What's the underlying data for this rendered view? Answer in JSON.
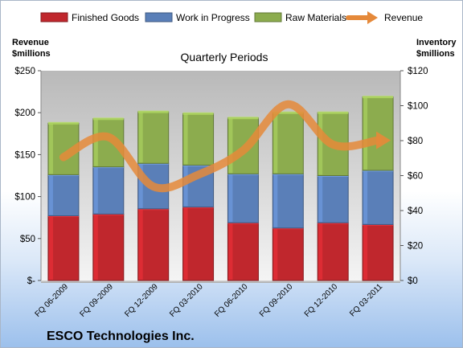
{
  "chart_data": {
    "type": "bar",
    "subtitle": "Quarterly Periods",
    "company": "ESCO Technologies Inc.",
    "categories": [
      "FQ 06-2009",
      "FQ 09-2009",
      "FQ 12-2009",
      "FQ 03-2010",
      "FQ 06-2010",
      "FQ 09-2010",
      "FQ 12-2010",
      "FQ 03-2011"
    ],
    "left_axis": {
      "label_line1": "Revenue",
      "label_line2": "$millions",
      "ylim": [
        0,
        250
      ],
      "ticks": [
        0,
        50,
        100,
        150,
        200,
        250
      ],
      "tick_labels": [
        "$-",
        "$50",
        "$100",
        "$150",
        "$200",
        "$250"
      ]
    },
    "right_axis": {
      "label_line1": "Inventory",
      "label_line2": "$millions",
      "ylim": [
        0,
        120
      ],
      "ticks": [
        0,
        20,
        40,
        60,
        80,
        100,
        120
      ],
      "tick_labels": [
        "$0",
        "$20",
        "$40",
        "$60",
        "$80",
        "$100",
        "$120"
      ]
    },
    "stack_series": [
      {
        "name": "Finished Goods",
        "color": "#c0272d",
        "values": [
          37,
          38,
          41,
          42,
          33,
          30,
          33,
          32
        ]
      },
      {
        "name": "Work in Progress",
        "color": "#5a7fb8",
        "values": [
          23.5,
          27,
          26,
          24,
          28,
          31,
          27,
          31
        ]
      },
      {
        "name": "Raw Materials",
        "color": "#8cac4e",
        "values": [
          29.5,
          27.5,
          29.5,
          29.5,
          32,
          35,
          36,
          42
        ]
      }
    ],
    "line_series": {
      "name": "Revenue",
      "color": "#e5893a",
      "axis": "left",
      "values": [
        147,
        171,
        112,
        126,
        155,
        210,
        162,
        167
      ]
    },
    "legend_position": "top",
    "grid": false
  }
}
